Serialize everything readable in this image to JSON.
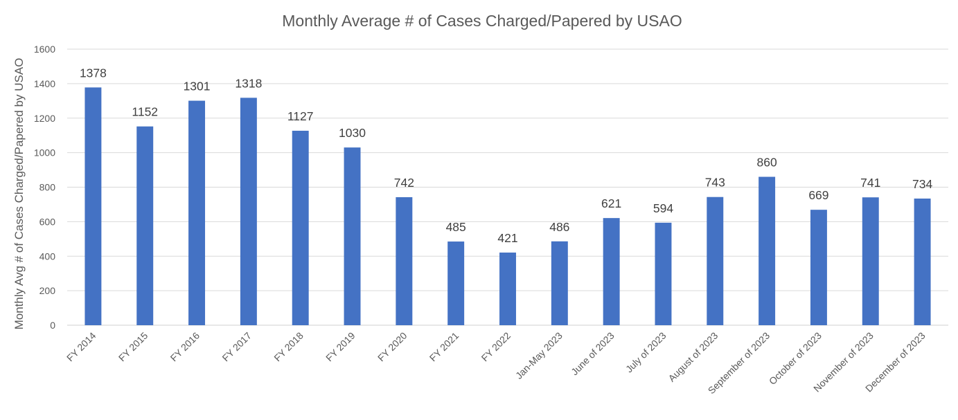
{
  "chart_data": {
    "type": "bar",
    "title": "Monthly Average # of Cases Charged/Papered by USAO",
    "xlabel": "",
    "ylabel": "Monthly Avg # of Cases Charged/Papered by USAO",
    "ylim": [
      0,
      1600
    ],
    "yticks": [
      0,
      200,
      400,
      600,
      800,
      1000,
      1200,
      1400,
      1600
    ],
    "grid": true,
    "legend": "none",
    "bar_color": "#4472c4",
    "categories": [
      "FY 2014",
      "FY 2015",
      "FY 2016",
      "FY 2017",
      "FY 2018",
      "FY 2019",
      "FY 2020",
      "FY 2021",
      "FY 2022",
      "Jan-May 2023",
      "June of 2023",
      "July of 2023",
      "August of 2023",
      "September of 2023",
      "October of 2023",
      "November of 2023",
      "December of 2023"
    ],
    "values": [
      1378,
      1152,
      1301,
      1318,
      1127,
      1030,
      742,
      485,
      421,
      486,
      621,
      594,
      743,
      860,
      669,
      741,
      734
    ]
  }
}
